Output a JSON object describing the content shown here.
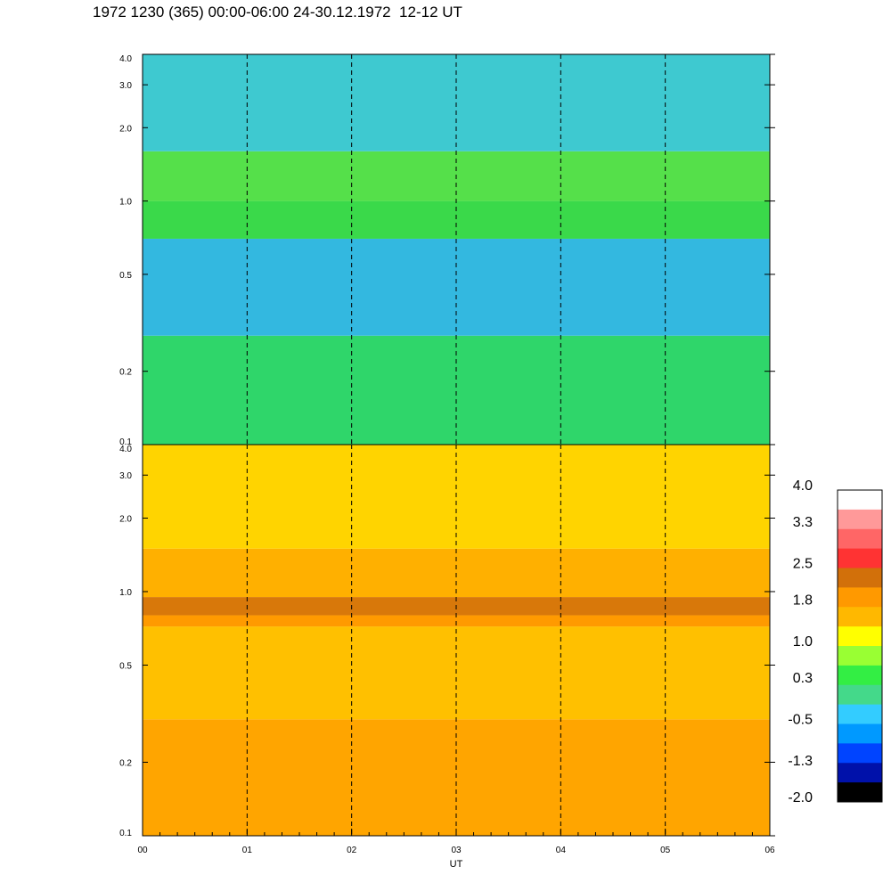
{
  "title": "1972 1230 (365) 00:00-06:00 24-30.12.1972  12-12 UT",
  "chart_data": {
    "type": "heatmap",
    "xlabel": "UT",
    "x_ticks": [
      "00",
      "01",
      "02",
      "03",
      "04",
      "05",
      "06"
    ],
    "xlim": [
      0,
      6
    ],
    "y_scale": "log",
    "y_ticks": [
      "4.0",
      "3.0",
      "2.0",
      "1.0",
      "0.5",
      "0.2",
      "0.1"
    ],
    "y_tick_values": [
      4.0,
      3.0,
      2.0,
      1.0,
      0.5,
      0.2,
      0.1
    ],
    "ylim": [
      0.1,
      4.0
    ],
    "panels": [
      {
        "name": "upper",
        "bands": [
          {
            "from": 0.1,
            "to": 0.28,
            "color": "#2fd66a"
          },
          {
            "from": 0.28,
            "to": 0.7,
            "color": "#33b8e0"
          },
          {
            "from": 0.7,
            "to": 1.0,
            "color": "#3ad94a"
          },
          {
            "from": 1.0,
            "to": 1.6,
            "color": "#55e04a"
          },
          {
            "from": 1.6,
            "to": 4.0,
            "color": "#3ec9d0"
          }
        ]
      },
      {
        "name": "lower",
        "bands": [
          {
            "from": 0.1,
            "to": 0.3,
            "color": "#ffa500"
          },
          {
            "from": 0.3,
            "to": 0.72,
            "color": "#ffc000"
          },
          {
            "from": 0.72,
            "to": 0.8,
            "color": "#ff9a00"
          },
          {
            "from": 0.8,
            "to": 0.95,
            "color": "#d8780a"
          },
          {
            "from": 0.95,
            "to": 1.5,
            "color": "#ffb000"
          },
          {
            "from": 1.5,
            "to": 4.0,
            "color": "#ffd400"
          }
        ]
      }
    ],
    "dashed_lines_x": [
      1,
      2,
      3,
      4,
      5
    ],
    "colorbar": {
      "labels": [
        "4.0",
        "3.3",
        "2.5",
        "1.8",
        "1.0",
        "0.3",
        "-0.5",
        "-1.3",
        "-2.0"
      ],
      "label_values": [
        4.0,
        3.3,
        2.5,
        1.8,
        1.0,
        0.3,
        -0.5,
        -1.3,
        -2.0
      ],
      "colors": [
        "#ffffff",
        "#ff9999",
        "#ff6666",
        "#ff3333",
        "#d2700a",
        "#ff9900",
        "#ffb800",
        "#ffff00",
        "#99ff33",
        "#33ee44",
        "#44d98a",
        "#33ccff",
        "#0099ff",
        "#0044ff",
        "#0011aa",
        "#000000"
      ]
    }
  }
}
